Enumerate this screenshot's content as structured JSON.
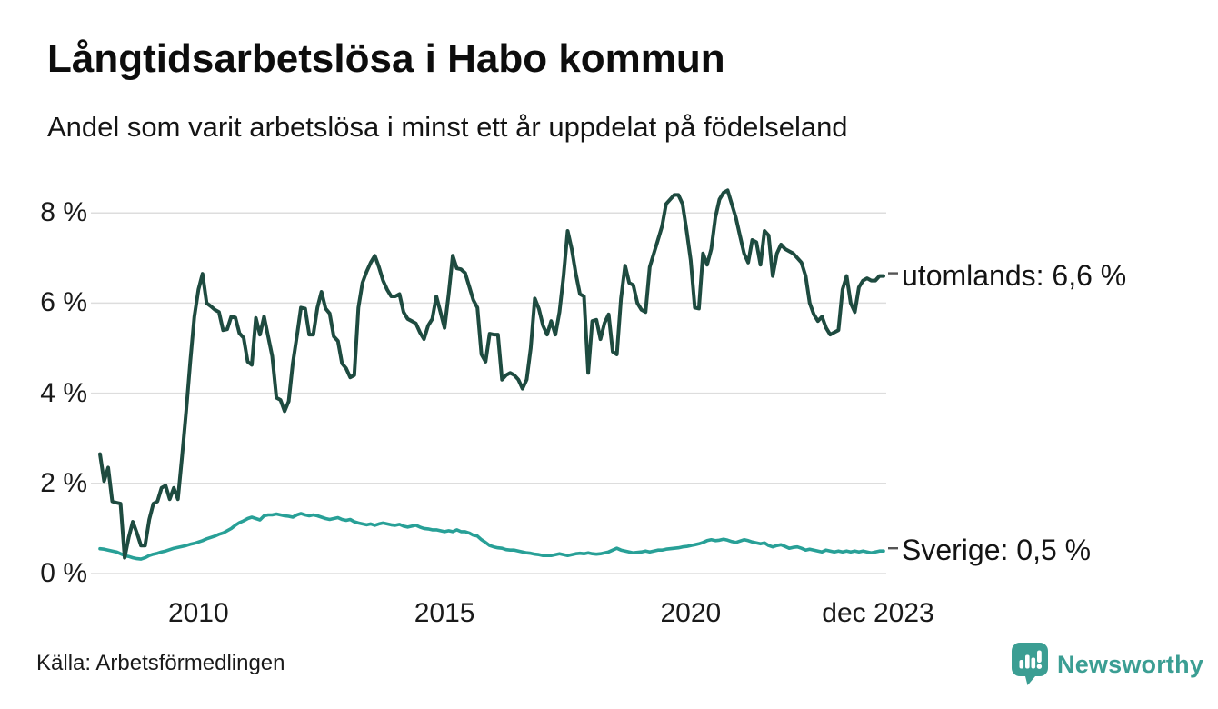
{
  "header": {
    "title": "Långtidsarbetslösa i Habo kommun",
    "subtitle": "Andel som varit arbetslösa i minst ett år uppdelat på födelseland"
  },
  "chart_data": {
    "type": "line",
    "title": "Långtidsarbetslösa i Habo kommun",
    "subtitle": "Andel som varit arbetslösa i minst ett år uppdelat på födelseland",
    "unit": "%",
    "frequency": "monthly",
    "x_start": "jan 2008",
    "x_end": "dec 2023",
    "ylim": [
      0,
      8.8
    ],
    "grid": "horizontal",
    "legend_position": "right-of-line-end",
    "y_ticks": [
      {
        "label": "8 %",
        "value": 8
      },
      {
        "label": "6 %",
        "value": 6
      },
      {
        "label": "4 %",
        "value": 4
      },
      {
        "label": "2 %",
        "value": 2
      },
      {
        "label": "0 %",
        "value": 0
      }
    ],
    "x_ticks": [
      {
        "label": "2010",
        "month_index": 24
      },
      {
        "label": "2015",
        "month_index": 84
      },
      {
        "label": "2020",
        "month_index": 144
      },
      {
        "label": "dec 2023",
        "month_index": 191
      }
    ],
    "series": [
      {
        "name": "utomlands",
        "label": "utomlands: 6,6 %",
        "last_value": 6.6,
        "color": "#1e4b40",
        "values": [
          2.65,
          2.05,
          2.35,
          1.6,
          1.57,
          1.55,
          0.35,
          0.8,
          1.15,
          0.9,
          0.62,
          0.62,
          1.2,
          1.55,
          1.6,
          1.9,
          1.95,
          1.65,
          1.9,
          1.65,
          2.6,
          3.6,
          4.7,
          5.7,
          6.3,
          6.65,
          6.0,
          5.93,
          5.85,
          5.8,
          5.4,
          5.42,
          5.7,
          5.68,
          5.33,
          5.23,
          4.7,
          4.63,
          5.67,
          5.3,
          5.7,
          5.26,
          4.82,
          3.9,
          3.85,
          3.6,
          3.82,
          4.66,
          5.26,
          5.9,
          5.88,
          5.3,
          5.3,
          5.9,
          6.25,
          5.88,
          5.77,
          5.26,
          5.16,
          4.66,
          4.55,
          4.35,
          4.4,
          5.9,
          6.45,
          6.7,
          6.9,
          7.05,
          6.8,
          6.5,
          6.3,
          6.15,
          6.15,
          6.2,
          5.8,
          5.65,
          5.6,
          5.55,
          5.35,
          5.2,
          5.5,
          5.65,
          6.15,
          5.8,
          5.45,
          6.2,
          7.05,
          6.77,
          6.75,
          6.67,
          6.37,
          6.07,
          5.9,
          4.86,
          4.7,
          5.32,
          5.3,
          5.3,
          4.3,
          4.4,
          4.45,
          4.4,
          4.3,
          4.1,
          4.3,
          5.0,
          6.1,
          5.87,
          5.5,
          5.3,
          5.6,
          5.3,
          5.8,
          6.6,
          7.6,
          7.2,
          6.65,
          6.2,
          6.15,
          4.45,
          5.6,
          5.63,
          5.2,
          5.56,
          5.75,
          4.92,
          4.86,
          6.1,
          6.83,
          6.45,
          6.4,
          6.0,
          5.85,
          5.8,
          6.8,
          7.1,
          7.4,
          7.7,
          8.2,
          8.3,
          8.4,
          8.4,
          8.2,
          7.6,
          6.95,
          5.9,
          5.88,
          7.1,
          6.85,
          7.2,
          7.9,
          8.3,
          8.45,
          8.5,
          8.2,
          7.9,
          7.5,
          7.1,
          6.9,
          7.4,
          7.35,
          6.85,
          7.6,
          7.5,
          6.6,
          7.1,
          7.3,
          7.2,
          7.15,
          7.1,
          7.0,
          6.9,
          6.6,
          6.0,
          5.75,
          5.6,
          5.7,
          5.45,
          5.3,
          5.35,
          5.4,
          6.3,
          6.6,
          6.0,
          5.8,
          6.35,
          6.5,
          6.55,
          6.5,
          6.5,
          6.6,
          6.6
        ]
      },
      {
        "name": "Sverige",
        "label": "Sverige: 0,5 %",
        "last_value": 0.5,
        "color": "#28a097",
        "values": [
          0.55,
          0.54,
          0.52,
          0.5,
          0.48,
          0.44,
          0.4,
          0.38,
          0.35,
          0.33,
          0.32,
          0.35,
          0.4,
          0.43,
          0.45,
          0.48,
          0.5,
          0.53,
          0.56,
          0.58,
          0.6,
          0.62,
          0.65,
          0.67,
          0.7,
          0.73,
          0.77,
          0.8,
          0.83,
          0.87,
          0.9,
          0.95,
          1.0,
          1.07,
          1.13,
          1.17,
          1.22,
          1.25,
          1.22,
          1.19,
          1.28,
          1.3,
          1.3,
          1.32,
          1.3,
          1.28,
          1.27,
          1.25,
          1.3,
          1.33,
          1.3,
          1.28,
          1.3,
          1.28,
          1.25,
          1.22,
          1.2,
          1.22,
          1.24,
          1.2,
          1.18,
          1.2,
          1.15,
          1.12,
          1.1,
          1.08,
          1.1,
          1.07,
          1.1,
          1.12,
          1.1,
          1.08,
          1.07,
          1.09,
          1.05,
          1.03,
          1.05,
          1.07,
          1.03,
          1.0,
          0.99,
          0.97,
          0.97,
          0.95,
          0.93,
          0.95,
          0.93,
          0.97,
          0.93,
          0.93,
          0.9,
          0.85,
          0.83,
          0.75,
          0.69,
          0.62,
          0.59,
          0.57,
          0.56,
          0.53,
          0.52,
          0.52,
          0.5,
          0.48,
          0.46,
          0.45,
          0.43,
          0.42,
          0.4,
          0.4,
          0.4,
          0.42,
          0.44,
          0.42,
          0.4,
          0.42,
          0.44,
          0.45,
          0.44,
          0.46,
          0.44,
          0.43,
          0.44,
          0.46,
          0.48,
          0.52,
          0.56,
          0.52,
          0.5,
          0.48,
          0.46,
          0.47,
          0.48,
          0.5,
          0.48,
          0.5,
          0.52,
          0.52,
          0.54,
          0.55,
          0.56,
          0.57,
          0.59,
          0.6,
          0.62,
          0.64,
          0.66,
          0.69,
          0.73,
          0.75,
          0.73,
          0.74,
          0.76,
          0.74,
          0.71,
          0.69,
          0.72,
          0.75,
          0.73,
          0.7,
          0.68,
          0.66,
          0.68,
          0.62,
          0.59,
          0.62,
          0.64,
          0.6,
          0.56,
          0.58,
          0.59,
          0.56,
          0.52,
          0.54,
          0.52,
          0.5,
          0.48,
          0.52,
          0.5,
          0.48,
          0.5,
          0.48,
          0.5,
          0.48,
          0.5,
          0.48,
          0.5,
          0.48,
          0.46,
          0.48,
          0.5,
          0.5
        ]
      }
    ]
  },
  "footer": {
    "source": "Källa: Arbetsförmedlingen",
    "logo_text": "Newsworthy"
  },
  "colors": {
    "background": "#ffffff",
    "title_text": "#0d0d0d",
    "axis_text": "#1a1a1a",
    "gridline": "#dddddd",
    "leader_dash": "#555555",
    "series_utomlands": "#1e4b40",
    "series_sverige": "#28a097",
    "logo_teal": "#3b9e93"
  }
}
